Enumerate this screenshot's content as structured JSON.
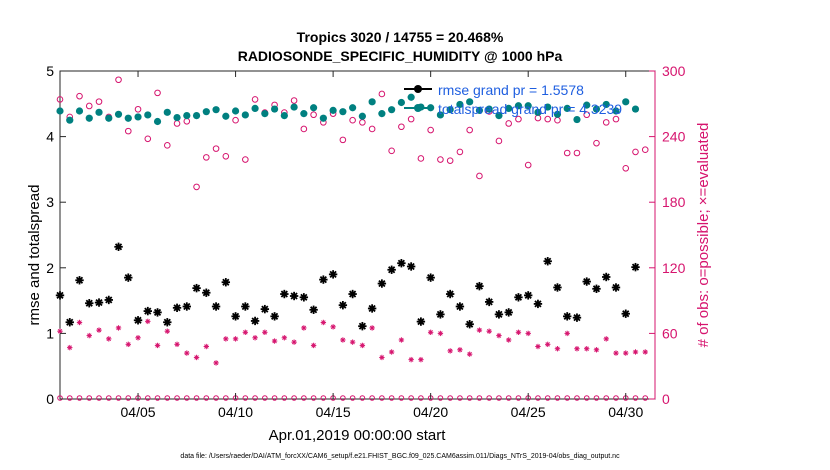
{
  "chart_data": {
    "type": "scatter",
    "title_line1": "Tropics 3020 / 14755 = 20.468%",
    "title_line2": "RADIOSONDE_SPECIFIC_HUMIDITY @ 1000 hPa",
    "xlabel": "Apr.01,2019 00:00:00 start",
    "ylabel_left": "rmse and totalspread",
    "ylabel_right": "# of obs: o=possible; ×=evaluated",
    "x_day_range": [
      1,
      31.5
    ],
    "ylim_left": [
      0,
      5
    ],
    "ylim_right": [
      0,
      300
    ],
    "x_ticks": [
      {
        "day": 5,
        "label": "04/05"
      },
      {
        "day": 10,
        "label": "04/10"
      },
      {
        "day": 15,
        "label": "04/15"
      },
      {
        "day": 20,
        "label": "04/20"
      },
      {
        "day": 25,
        "label": "04/25"
      },
      {
        "day": 30,
        "label": "04/30"
      }
    ],
    "y_ticks_left": [
      {
        "value": 0,
        "label": "0"
      },
      {
        "value": 1,
        "label": "1"
      },
      {
        "value": 2,
        "label": "2"
      },
      {
        "value": 3,
        "label": "3"
      },
      {
        "value": 4,
        "label": "4"
      },
      {
        "value": 5,
        "label": "5"
      }
    ],
    "y_ticks_right": [
      {
        "value": 0,
        "label": "0"
      },
      {
        "value": 60,
        "label": "60"
      },
      {
        "value": 120,
        "label": "120"
      },
      {
        "value": 180,
        "label": "180"
      },
      {
        "value": 240,
        "label": "240"
      },
      {
        "value": 300,
        "label": "300"
      }
    ],
    "x_days": [
      1.0,
      1.5,
      2.0,
      2.5,
      3.0,
      3.5,
      4.0,
      4.5,
      5.0,
      5.5,
      6.0,
      6.5,
      7.0,
      7.5,
      8.0,
      8.5,
      9.0,
      9.5,
      10.0,
      10.5,
      11.0,
      11.5,
      12.0,
      12.5,
      13.0,
      13.5,
      14.0,
      14.5,
      15.0,
      15.5,
      16.0,
      16.5,
      17.0,
      17.5,
      18.0,
      18.5,
      19.0,
      19.5,
      20.0,
      20.5,
      21.0,
      21.5,
      22.0,
      22.5,
      23.0,
      23.5,
      24.0,
      24.5,
      25.0,
      25.5,
      26.0,
      26.5,
      27.0,
      27.5,
      28.0,
      28.5,
      29.0,
      29.5,
      30.0,
      30.5,
      31.0
    ],
    "series": [
      {
        "name": "rmse",
        "legend": "rmse grand pr = 1.5578",
        "axis": "left",
        "color": "#000000",
        "marker": "asterisk",
        "values": [
          1.58,
          1.17,
          1.81,
          1.46,
          1.47,
          1.51,
          2.32,
          1.85,
          1.2,
          1.34,
          1.32,
          1.17,
          1.39,
          1.41,
          1.69,
          1.62,
          1.41,
          1.78,
          1.26,
          1.41,
          1.19,
          1.37,
          1.26,
          1.6,
          1.57,
          1.55,
          1.36,
          1.82,
          1.9,
          1.43,
          1.6,
          1.11,
          1.38,
          1.76,
          1.97,
          2.07,
          2.02,
          1.18,
          1.85,
          1.29,
          1.6,
          1.41,
          1.14,
          1.72,
          1.48,
          1.29,
          1.32,
          1.55,
          1.58,
          1.45,
          2.1,
          1.7,
          1.26,
          1.24,
          1.79,
          1.68,
          1.86,
          1.7,
          1.3,
          2.01,
          null
        ]
      },
      {
        "name": "totalspread",
        "legend": "totalspread grand pr = 4.3239",
        "axis": "left",
        "color": "#008080",
        "marker": "circle-filled",
        "values": [
          4.39,
          4.25,
          4.39,
          4.28,
          4.37,
          4.28,
          4.34,
          4.28,
          4.3,
          4.33,
          4.23,
          4.37,
          4.29,
          4.32,
          4.32,
          4.38,
          4.41,
          4.31,
          4.39,
          4.33,
          4.43,
          4.35,
          4.42,
          4.32,
          4.45,
          4.35,
          4.44,
          4.28,
          4.4,
          4.38,
          4.44,
          4.31,
          4.53,
          4.35,
          4.41,
          4.52,
          4.6,
          4.45,
          4.44,
          4.33,
          4.41,
          4.49,
          4.53,
          4.4,
          4.42,
          4.32,
          4.43,
          4.47,
          4.47,
          4.37,
          4.45,
          4.34,
          4.43,
          4.26,
          4.48,
          4.42,
          4.49,
          4.39,
          4.53,
          4.42,
          null
        ]
      },
      {
        "name": "obs possible",
        "axis": "right",
        "color": "#d6146e",
        "marker": "circle-open",
        "values": [
          274,
          258,
          277,
          268,
          272,
          258,
          292,
          245,
          265,
          238,
          280,
          232,
          252,
          254,
          194,
          221,
          229,
          222,
          255,
          219,
          274,
          262,
          269,
          262,
          273,
          247,
          260,
          253,
          261,
          237,
          255,
          253,
          247,
          279,
          227,
          249,
          256,
          220,
          246,
          219,
          218,
          226,
          246,
          204,
          263,
          236,
          252,
          256,
          214,
          257,
          256,
          255,
          225,
          225,
          260,
          234,
          253,
          256,
          211,
          226,
          228
        ]
      },
      {
        "name": "obs evaluated",
        "axis": "right",
        "color": "#d6146e",
        "marker": "asterisk",
        "values": [
          62,
          47,
          70,
          58,
          63,
          55,
          65,
          50,
          56,
          71,
          49,
          62,
          50,
          42,
          38,
          48,
          33,
          55,
          55,
          61,
          56,
          61,
          53,
          56,
          52,
          65,
          49,
          70,
          66,
          54,
          52,
          49,
          65,
          38,
          43,
          54,
          36,
          36,
          61,
          60,
          44,
          45,
          41,
          63,
          62,
          58,
          54,
          61,
          60,
          48,
          50,
          46,
          60,
          46,
          46,
          45,
          55,
          42,
          42,
          43,
          43
        ]
      },
      {
        "name": "obs zero baseline",
        "axis": "right",
        "color": "#d6146e",
        "marker": "circle-open-small",
        "values": [
          1,
          1,
          1,
          1,
          1,
          1,
          1,
          1,
          1,
          1,
          1,
          1,
          1,
          1,
          1,
          1,
          1,
          1,
          1,
          1,
          1,
          1,
          1,
          1,
          1,
          1,
          1,
          1,
          1,
          1,
          1,
          1,
          1,
          1,
          1,
          1,
          1,
          1,
          1,
          1,
          1,
          1,
          1,
          1,
          1,
          1,
          1,
          1,
          1,
          1,
          1,
          1,
          1,
          1,
          1,
          1,
          1,
          1,
          1,
          1,
          1
        ]
      }
    ],
    "legend_position": "top-right"
  },
  "footer": "data file: /Users/raeder/DAI/ATM_forcXX/CAM6_setup/f.e21.FHIST_BGC.f09_025.CAM6assim.011/Diags_NTrS_2019-04/obs_diag_output.nc"
}
